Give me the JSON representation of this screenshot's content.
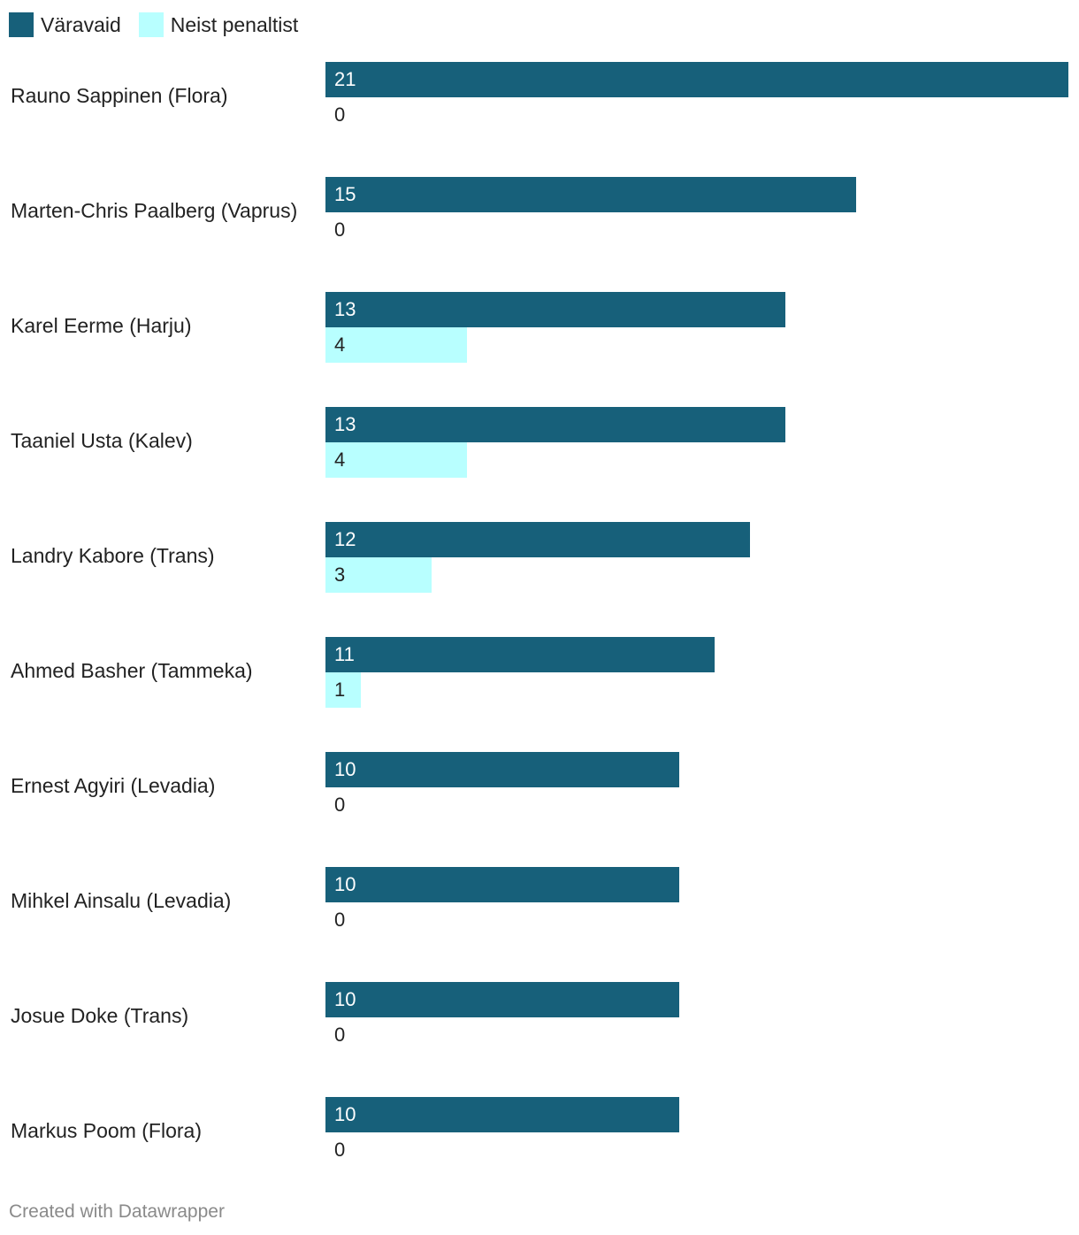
{
  "chart_data": {
    "type": "bar",
    "orientation": "horizontal",
    "categories": [
      "Rauno Sappinen (Flora)",
      "Marten-Chris Paalberg (Vaprus)",
      "Karel Eerme (Harju)",
      "Taaniel Usta (Kalev)",
      "Landry Kabore (Trans)",
      "Ahmed Basher (Tammeka)",
      "Ernest Agyiri (Levadia)",
      "Mihkel Ainsalu (Levadia)",
      "Josue Doke (Trans)",
      "Markus Poom (Flora)"
    ],
    "series": [
      {
        "name": "Väravaid",
        "color": "#17607a",
        "label_color": "#ffffff",
        "values": [
          21,
          15,
          13,
          13,
          12,
          11,
          10,
          10,
          10,
          10
        ]
      },
      {
        "name": "Neist penaltist",
        "color": "#b8ffff",
        "label_color": "#222222",
        "values": [
          0,
          0,
          4,
          4,
          3,
          1,
          0,
          0,
          0,
          0
        ]
      }
    ],
    "xlim": [
      0,
      21
    ],
    "grid": false,
    "legend_position": "top-left"
  },
  "footer": "Created with Datawrapper"
}
